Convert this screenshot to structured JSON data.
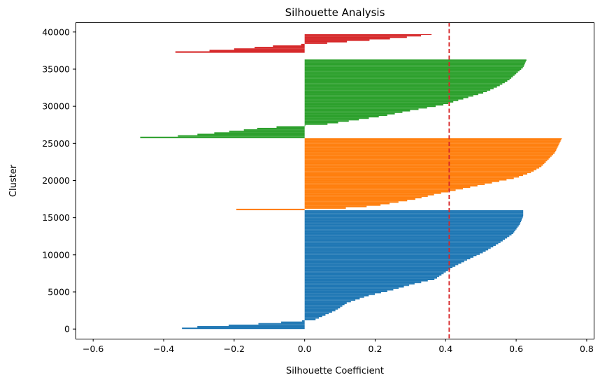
{
  "chart_data": {
    "type": "bar",
    "orientation": "horizontal",
    "title": "Silhouette Analysis",
    "xlabel": "Silhouette Coefficient",
    "ylabel": "Cluster",
    "xlim": [
      -0.65,
      0.82
    ],
    "ylim": [
      -1300,
      41300
    ],
    "xticks": [
      -0.6,
      -0.4,
      -0.2,
      0.0,
      0.2,
      0.4,
      0.6,
      0.8
    ],
    "xtick_labels": [
      "−0.6",
      "−0.4",
      "−0.2",
      "0.0",
      "0.2",
      "0.4",
      "0.6",
      "0.8"
    ],
    "yticks": [
      0,
      5000,
      10000,
      15000,
      20000,
      25000,
      30000,
      35000,
      40000
    ],
    "ytick_labels": [
      "0",
      "5000",
      "10000",
      "15000",
      "20000",
      "25000",
      "30000",
      "35000",
      "40000"
    ],
    "grid": false,
    "legend": "none",
    "reference_line": {
      "x": 0.41,
      "color": "#d62728",
      "style": "dashed"
    },
    "clusters": [
      {
        "color": "#1f77b4",
        "y_start": 0,
        "y_end": 16000,
        "profile": [
          [
            0.0,
            -0.37
          ],
          [
            0.02,
            -0.3
          ],
          [
            0.04,
            -0.15
          ],
          [
            0.05,
            -0.1
          ],
          [
            0.065,
            -0.02
          ],
          [
            0.08,
            0.03
          ],
          [
            0.12,
            0.06
          ],
          [
            0.16,
            0.09
          ],
          [
            0.22,
            0.12
          ],
          [
            0.28,
            0.18
          ],
          [
            0.33,
            0.25
          ],
          [
            0.38,
            0.31
          ],
          [
            0.42,
            0.37
          ],
          [
            0.48,
            0.4
          ],
          [
            0.52,
            0.42
          ],
          [
            0.58,
            0.46
          ],
          [
            0.65,
            0.51
          ],
          [
            0.72,
            0.55
          ],
          [
            0.8,
            0.59
          ],
          [
            0.88,
            0.61
          ],
          [
            0.95,
            0.62
          ],
          [
            1.0,
            0.62
          ]
        ]
      },
      {
        "color": "#ff7f0e",
        "y_start": 16000,
        "y_end": 25700,
        "profile": [
          [
            0.0,
            -0.2
          ],
          [
            0.01,
            -0.2
          ],
          [
            0.025,
            0.1
          ],
          [
            0.06,
            0.2
          ],
          [
            0.1,
            0.25
          ],
          [
            0.15,
            0.31
          ],
          [
            0.22,
            0.37
          ],
          [
            0.3,
            0.45
          ],
          [
            0.38,
            0.53
          ],
          [
            0.45,
            0.6
          ],
          [
            0.52,
            0.64
          ],
          [
            0.6,
            0.67
          ],
          [
            0.7,
            0.69
          ],
          [
            0.8,
            0.71
          ],
          [
            0.9,
            0.72
          ],
          [
            1.0,
            0.73
          ]
        ]
      },
      {
        "color": "#2ca02c",
        "y_start": 25700,
        "y_end": 36300,
        "profile": [
          [
            0.0,
            -0.52
          ],
          [
            0.03,
            -0.35
          ],
          [
            0.06,
            -0.27
          ],
          [
            0.1,
            -0.18
          ],
          [
            0.13,
            -0.12
          ],
          [
            0.15,
            -0.05
          ],
          [
            0.17,
            0.05
          ],
          [
            0.22,
            0.13
          ],
          [
            0.28,
            0.22
          ],
          [
            0.35,
            0.3
          ],
          [
            0.42,
            0.39
          ],
          [
            0.5,
            0.45
          ],
          [
            0.58,
            0.51
          ],
          [
            0.66,
            0.55
          ],
          [
            0.74,
            0.58
          ],
          [
            0.82,
            0.6
          ],
          [
            0.9,
            0.62
          ],
          [
            1.0,
            0.63
          ]
        ]
      },
      {
        "color": "#d62728",
        "y_start": 37200,
        "y_end": 39700,
        "profile": [
          [
            0.0,
            -0.44
          ],
          [
            0.06,
            -0.33
          ],
          [
            0.15,
            -0.24
          ],
          [
            0.25,
            -0.16
          ],
          [
            0.35,
            -0.1
          ],
          [
            0.42,
            -0.03
          ],
          [
            0.5,
            0.05
          ],
          [
            0.6,
            0.12
          ],
          [
            0.7,
            0.2
          ],
          [
            0.8,
            0.27
          ],
          [
            0.9,
            0.32
          ],
          [
            1.0,
            0.37
          ]
        ]
      }
    ]
  }
}
